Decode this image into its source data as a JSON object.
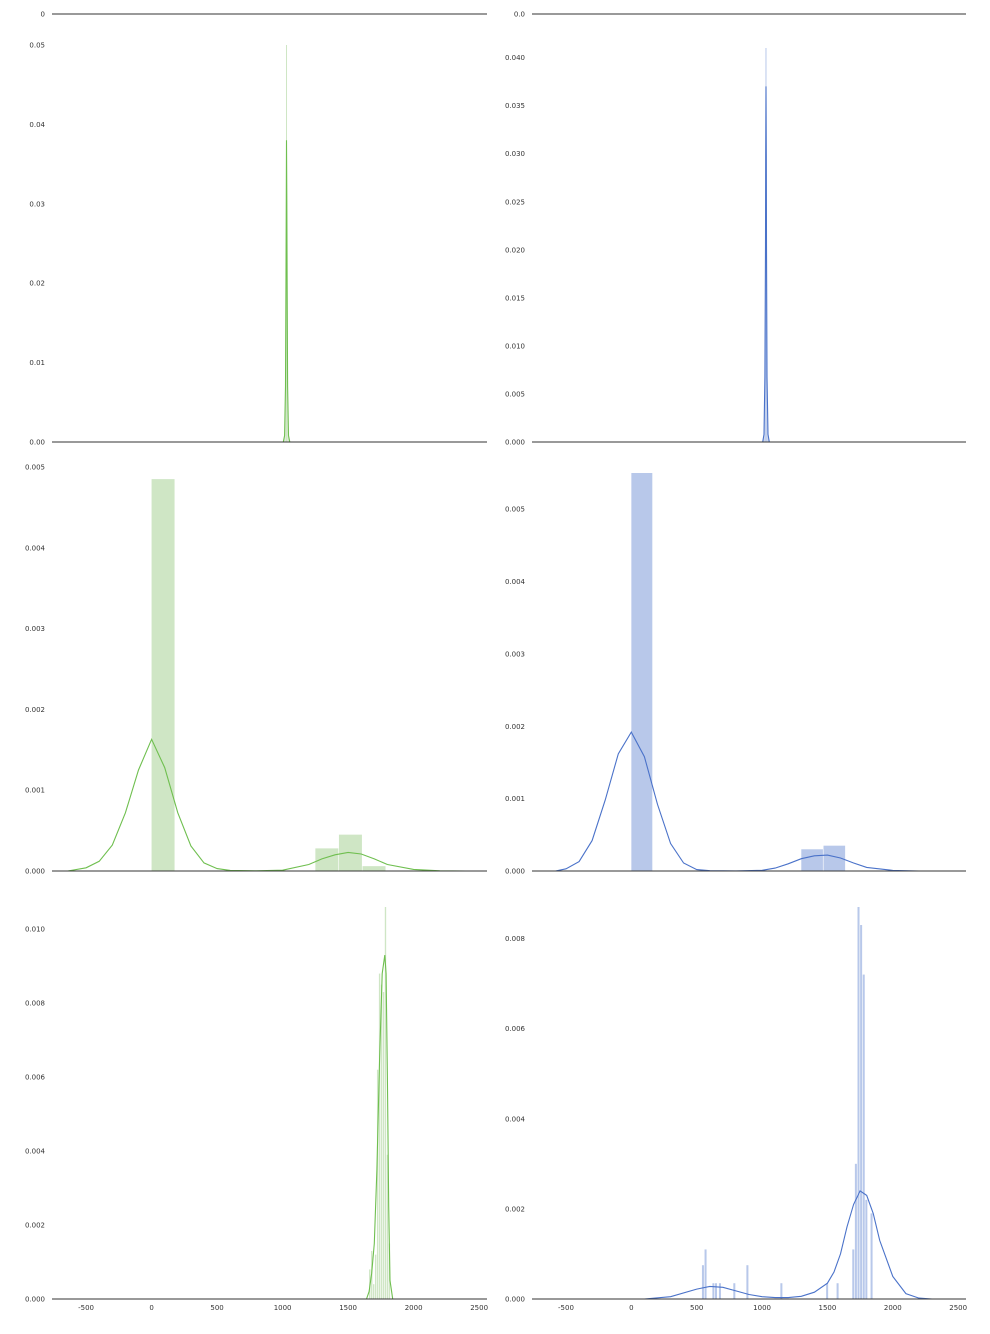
{
  "colors": {
    "green": "#6fbf4f",
    "green_fill": "#cfe6c5",
    "blue": "#4a72c9",
    "blue_fill": "#b8c8ea",
    "axis": "#333333"
  },
  "chart_data": [
    {
      "panel": "row0-left",
      "type": "line",
      "ylim": [
        0,
        0.0001
      ],
      "yticks": [
        0
      ],
      "ytick_labels": [
        "0"
      ],
      "xlim": [
        -760,
        2560
      ],
      "x_visible": false,
      "series": [
        {
          "x": [],
          "y": []
        }
      ],
      "bars": []
    },
    {
      "panel": "row0-right",
      "type": "line",
      "ylim": [
        0,
        0.0001
      ],
      "yticks": [
        0
      ],
      "ytick_labels": [
        "0.0"
      ],
      "xlim": [
        -760,
        2560
      ],
      "x_visible": false,
      "series": [
        {
          "x": [],
          "y": []
        }
      ],
      "bars": []
    },
    {
      "panel": "row1-left",
      "type": "area",
      "color": "green",
      "ylim": [
        0,
        0.05
      ],
      "yticks": [
        0,
        0.01,
        0.02,
        0.03,
        0.04,
        0.05
      ],
      "ytick_labels": [
        "0.00",
        "0.01",
        "0.02",
        "0.03",
        "0.04",
        "0.05"
      ],
      "xlim": [
        -760,
        2560
      ],
      "x_visible": false,
      "series": [
        {
          "x": [
            1005,
            1015,
            1022,
            1026,
            1028,
            1030,
            1032,
            1034,
            1038,
            1045,
            1055
          ],
          "y": [
            0,
            0.0008,
            0.007,
            0.021,
            0.031,
            0.038,
            0.031,
            0.021,
            0.007,
            0.0008,
            0
          ]
        }
      ],
      "bars": [
        {
          "x0": 1026,
          "x1": 1034,
          "y": 0.05
        }
      ]
    },
    {
      "panel": "row1-right",
      "type": "area",
      "color": "blue",
      "ylim": [
        0,
        0.041
      ],
      "yticks": [
        0,
        0.005,
        0.01,
        0.015,
        0.02,
        0.025,
        0.03,
        0.035,
        0.04
      ],
      "ytick_labels": [
        "0.000",
        "0.005",
        "0.010",
        "0.015",
        "0.020",
        "0.025",
        "0.030",
        "0.035",
        "0.040"
      ],
      "xlim": [
        -760,
        2560
      ],
      "x_visible": false,
      "series": [
        {
          "x": [
            1005,
            1015,
            1022,
            1026,
            1028,
            1030,
            1032,
            1034,
            1038,
            1045,
            1055
          ],
          "y": [
            0,
            0.0008,
            0.0068,
            0.0204,
            0.0299,
            0.037,
            0.0299,
            0.0204,
            0.0068,
            0.0008,
            0
          ]
        }
      ],
      "bars": [
        {
          "x0": 1026,
          "x1": 1034,
          "y": 0.041
        }
      ]
    },
    {
      "panel": "row2-left",
      "type": "bar",
      "color": "green",
      "ylim": [
        0,
        0.005
      ],
      "yticks": [
        0,
        0.001,
        0.002,
        0.003,
        0.004,
        0.005
      ],
      "ytick_labels": [
        "0.000",
        "0.001",
        "0.002",
        "0.003",
        "0.004",
        "0.005"
      ],
      "xlim": [
        -760,
        2560
      ],
      "x_visible": false,
      "series": [
        {
          "x": [
            -640,
            -500,
            -400,
            -300,
            -200,
            -100,
            0,
            100,
            200,
            300,
            400,
            500,
            600,
            800,
            1000,
            1200,
            1300,
            1400,
            1500,
            1600,
            1700,
            1800,
            2000,
            2200,
            2400
          ],
          "y": [
            0,
            4e-05,
            0.00012,
            0.00032,
            0.00072,
            0.00125,
            0.00163,
            0.00128,
            0.00072,
            0.00031,
            0.0001,
            3e-05,
            8e-06,
            2e-06,
            1e-05,
            8e-05,
            0.00015,
            0.0002,
            0.00023,
            0.00021,
            0.00015,
            8e-05,
            2e-05,
            3e-06,
            0
          ]
        }
      ],
      "bars": [
        {
          "x0": 0,
          "x1": 180,
          "y": 0.00485
        },
        {
          "x0": 1250,
          "x1": 1430,
          "y": 0.00028
        },
        {
          "x0": 1430,
          "x1": 1610,
          "y": 0.00045
        },
        {
          "x0": 1610,
          "x1": 1790,
          "y": 6e-05
        }
      ]
    },
    {
      "panel": "row2-right",
      "type": "bar",
      "color": "blue",
      "ylim": [
        0,
        0.0055
      ],
      "yticks": [
        0,
        0.001,
        0.002,
        0.003,
        0.004,
        0.005
      ],
      "ytick_labels": [
        "0.000",
        "0.001",
        "0.002",
        "0.003",
        "0.004",
        "0.005"
      ],
      "xlim": [
        -760,
        2560
      ],
      "x_visible": false,
      "series": [
        {
          "x": [
            -580,
            -500,
            -400,
            -300,
            -200,
            -100,
            0,
            100,
            200,
            300,
            400,
            500,
            600,
            800,
            1000,
            1100,
            1200,
            1300,
            1400,
            1500,
            1600,
            1700,
            1800,
            2000,
            2200
          ],
          "y": [
            0,
            3e-05,
            0.00013,
            0.00042,
            0.00098,
            0.00162,
            0.00192,
            0.00158,
            0.00092,
            0.00038,
            0.00011,
            2e-05,
            4e-06,
            1e-06,
            1e-05,
            4e-05,
            0.0001,
            0.00017,
            0.00021,
            0.00022,
            0.00018,
            0.00011,
            5e-05,
            8e-06,
            0
          ]
        }
      ],
      "bars": [
        {
          "x0": 0,
          "x1": 165,
          "y": 0.0055
        },
        {
          "x0": 1300,
          "x1": 1470,
          "y": 0.0003
        },
        {
          "x0": 1470,
          "x1": 1640,
          "y": 0.00035
        }
      ]
    },
    {
      "panel": "row3-left",
      "type": "bar",
      "color": "green",
      "ylim": [
        0,
        0.0106
      ],
      "yticks": [
        0,
        0.002,
        0.004,
        0.006,
        0.008,
        0.01
      ],
      "ytick_labels": [
        "0.000",
        "0.002",
        "0.004",
        "0.006",
        "0.008",
        "0.010"
      ],
      "xlim": [
        -760,
        2560
      ],
      "x_visible": true,
      "xticks": [
        -500,
        0,
        500,
        1000,
        1500,
        2000,
        2500
      ],
      "xtick_labels": [
        "-500",
        "0",
        "500",
        "1000",
        "1500",
        "2000",
        "2500"
      ],
      "series": [
        {
          "x": [
            1640,
            1660,
            1680,
            1700,
            1720,
            1740,
            1760,
            1780,
            1790,
            1800,
            1810,
            1820,
            1840
          ],
          "y": [
            0,
            0.0002,
            0.0007,
            0.0015,
            0.0035,
            0.0065,
            0.0088,
            0.0093,
            0.0088,
            0.006,
            0.0025,
            0.0005,
            0
          ]
        }
      ],
      "bars": [
        {
          "x0": 1660,
          "x1": 1675,
          "y": 0.0008
        },
        {
          "x0": 1675,
          "x1": 1690,
          "y": 0.0013
        },
        {
          "x0": 1690,
          "x1": 1705,
          "y": 0.0004
        },
        {
          "x0": 1705,
          "x1": 1720,
          "y": 0.0012
        },
        {
          "x0": 1720,
          "x1": 1735,
          "y": 0.0062
        },
        {
          "x0": 1735,
          "x1": 1750,
          "y": 0.0088
        },
        {
          "x0": 1750,
          "x1": 1765,
          "y": 0.0085
        },
        {
          "x0": 1765,
          "x1": 1780,
          "y": 0.0083
        },
        {
          "x0": 1780,
          "x1": 1795,
          "y": 0.0106
        },
        {
          "x0": 1795,
          "x1": 1810,
          "y": 0.0039
        },
        {
          "x0": 1810,
          "x1": 1825,
          "y": 0.0015
        }
      ]
    },
    {
      "panel": "row3-right",
      "type": "bar",
      "color": "blue",
      "ylim": [
        0,
        0.0087
      ],
      "yticks": [
        0,
        0.002,
        0.004,
        0.006,
        0.008
      ],
      "ytick_labels": [
        "0.000",
        "0.002",
        "0.004",
        "0.006",
        "0.008"
      ],
      "xlim": [
        -760,
        2560
      ],
      "x_visible": true,
      "xticks": [
        -500,
        0,
        500,
        1000,
        1500,
        2000,
        2500
      ],
      "xtick_labels": [
        "-500",
        "0",
        "500",
        "1000",
        "1500",
        "2000",
        "2500"
      ],
      "series": [
        {
          "x": [
            100,
            300,
            500,
            600,
            700,
            800,
            900,
            1000,
            1100,
            1200,
            1300,
            1400,
            1500,
            1550,
            1600,
            1650,
            1700,
            1750,
            1800,
            1850,
            1900,
            2000,
            2100,
            2200,
            2300
          ],
          "y": [
            0,
            5e-05,
            0.00022,
            0.00028,
            0.00026,
            0.00018,
            0.0001,
            5e-05,
            3e-05,
            3e-05,
            6e-05,
            0.00015,
            0.00035,
            0.0006,
            0.001,
            0.0016,
            0.0021,
            0.0024,
            0.0023,
            0.0019,
            0.0013,
            0.0005,
            0.00012,
            2e-05,
            0
          ]
        }
      ],
      "bars": [
        {
          "x0": 540,
          "x1": 560,
          "y": 0.00075
        },
        {
          "x0": 560,
          "x1": 580,
          "y": 0.0011
        },
        {
          "x0": 620,
          "x1": 640,
          "y": 0.00035
        },
        {
          "x0": 640,
          "x1": 660,
          "y": 0.00035
        },
        {
          "x0": 670,
          "x1": 690,
          "y": 0.00035
        },
        {
          "x0": 780,
          "x1": 800,
          "y": 0.00035
        },
        {
          "x0": 880,
          "x1": 900,
          "y": 0.00075
        },
        {
          "x0": 1140,
          "x1": 1160,
          "y": 0.00035
        },
        {
          "x0": 1490,
          "x1": 1510,
          "y": 0.00035
        },
        {
          "x0": 1570,
          "x1": 1590,
          "y": 0.00035
        },
        {
          "x0": 1690,
          "x1": 1710,
          "y": 0.0011
        },
        {
          "x0": 1710,
          "x1": 1730,
          "y": 0.003
        },
        {
          "x0": 1730,
          "x1": 1750,
          "y": 0.0087
        },
        {
          "x0": 1750,
          "x1": 1770,
          "y": 0.0083
        },
        {
          "x0": 1770,
          "x1": 1790,
          "y": 0.0072
        },
        {
          "x0": 1790,
          "x1": 1810,
          "y": 0.0022
        },
        {
          "x0": 1830,
          "x1": 1850,
          "y": 0.0019
        }
      ]
    }
  ]
}
